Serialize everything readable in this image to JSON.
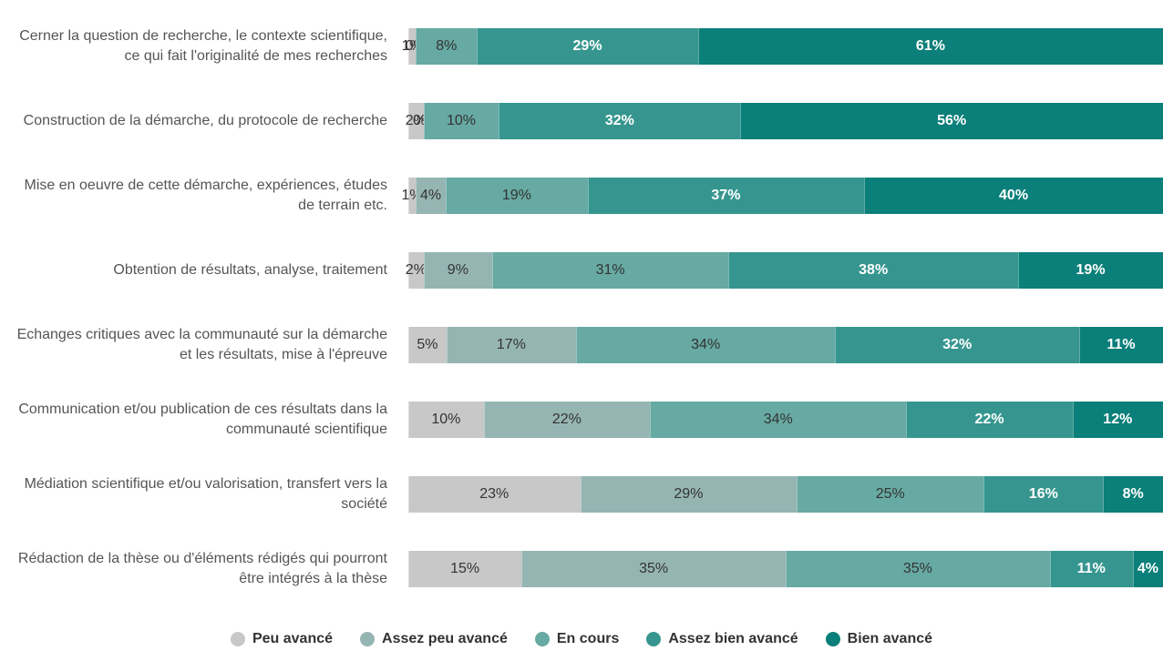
{
  "chart_data": {
    "type": "stacked_bar_horizontal",
    "categories": [
      "Cerner la question de recherche, le contexte scientifique, ce qui fait l'originalité de mes recherches",
      "Construction de la démarche, du protocole de recherche",
      "Mise en oeuvre de cette démarche, expériences, études de terrain etc.",
      "Obtention de résultats, analyse, traitement",
      "Echanges critiques avec la communauté sur la démarche et les résultats, mise à l'épreuve",
      "Communication et/ou publication de ces résultats dans la communauté scientifique",
      "Médiation scientifique et/ou valorisation, transfert vers la société",
      "Rédaction de la thèse ou d'éléments rédigés qui pourront être intégrés à la thèse"
    ],
    "series": [
      {
        "name": "Peu avancé",
        "color": "#c8c8c8",
        "values": [
          1,
          2,
          1,
          2,
          5,
          10,
          23,
          15
        ],
        "value_labels": [
          "1%",
          "2%",
          "1%",
          "2%",
          "5%",
          "10%",
          "23%",
          "15%"
        ]
      },
      {
        "name": "Assez peu avancé",
        "color": "#95b5b3",
        "values": [
          0,
          0,
          4,
          9,
          17,
          22,
          29,
          35
        ],
        "value_labels": [
          "0%",
          "0%",
          "4%",
          "9%",
          "17%",
          "22%",
          "29%",
          "35%"
        ]
      },
      {
        "name": "En cours",
        "color": "#67a9a3",
        "values": [
          8,
          10,
          19,
          31,
          34,
          34,
          25,
          35
        ],
        "value_labels": [
          "8%",
          "10%",
          "19%",
          "31%",
          "34%",
          "34%",
          "25%",
          "35%"
        ]
      },
      {
        "name": "Assez bien avancé",
        "color": "#36968f",
        "values": [
          29,
          32,
          37,
          38,
          32,
          22,
          16,
          11
        ],
        "value_labels": [
          "29%",
          "32%",
          "37%",
          "38%",
          "32%",
          "22%",
          "16%",
          "11%"
        ]
      },
      {
        "name": "Bien avancé",
        "color": "#0b7f79",
        "values": [
          61,
          56,
          40,
          19,
          11,
          12,
          8,
          4
        ],
        "value_labels": [
          "61%",
          "56%",
          "40%",
          "19%",
          "11%",
          "12%",
          "8%",
          "4%"
        ]
      }
    ],
    "legend": "bottom"
  }
}
